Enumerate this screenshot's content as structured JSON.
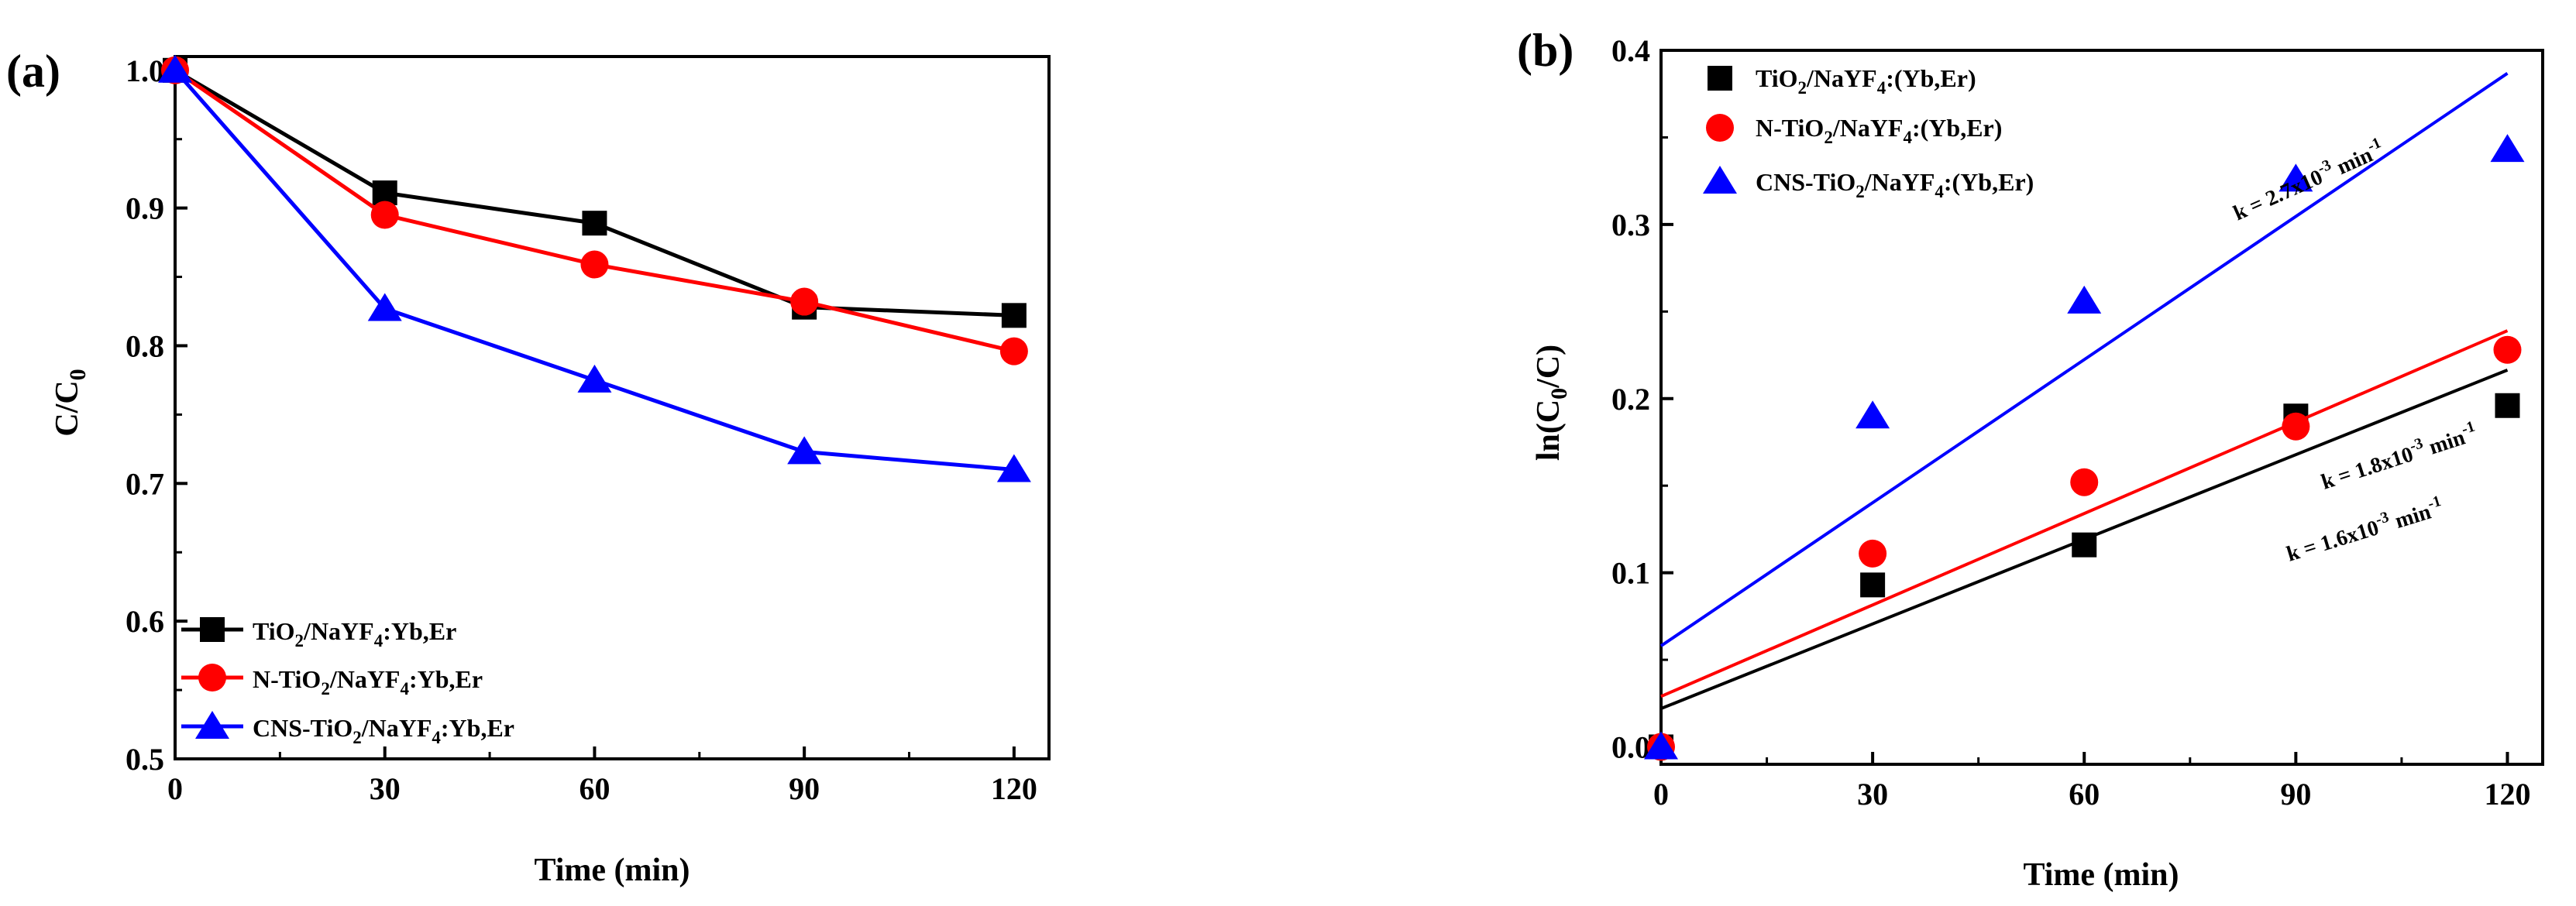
{
  "chart_data": [
    {
      "panel_label": "(a)",
      "type": "line",
      "x": [
        0,
        30,
        60,
        90,
        120
      ],
      "xlabel": "Time (min)",
      "ylabel": {
        "main": "C/C",
        "sub": "0"
      },
      "xlim": [
        0,
        125
      ],
      "ylim": [
        0.5,
        1.01
      ],
      "xticks": [
        0,
        30,
        60,
        90,
        120
      ],
      "yticks": [
        0.5,
        0.6,
        0.7,
        0.8,
        0.9,
        1.0
      ],
      "ytick_labels": [
        "0.5",
        "0.6",
        "0.7",
        "0.8",
        "0.9",
        "1.0"
      ],
      "legend_position": "bottom-left",
      "series": [
        {
          "name": "TiO2/NaYF4:Yb,Er",
          "label": {
            "a": "TiO",
            "b": "2",
            "c": "/NaYF",
            "d": "4",
            "e": ":Yb,Er"
          },
          "marker": "square",
          "color": "#000000",
          "values": [
            1.0,
            0.911,
            0.889,
            0.828,
            0.822
          ]
        },
        {
          "name": "N-TiO2/NaYF4:Yb,Er",
          "label": {
            "a": "N-TiO",
            "b": "2",
            "c": "/NaYF",
            "d": "4",
            "e": ":Yb,Er"
          },
          "marker": "circle",
          "color": "#ff0000",
          "values": [
            1.0,
            0.895,
            0.859,
            0.832,
            0.796
          ]
        },
        {
          "name": "CNS-TiO2/NaYF4:Yb,Er",
          "label": {
            "a": "CNS-TiO",
            "b": "2",
            "c": "/NaYF",
            "d": "4",
            "e": ":Yb,Er"
          },
          "marker": "triangle",
          "color": "#0000ff",
          "values": [
            1.0,
            0.827,
            0.775,
            0.723,
            0.71
          ]
        }
      ]
    },
    {
      "panel_label": "(b)",
      "type": "scatter",
      "x": [
        0,
        30,
        60,
        90,
        120
      ],
      "xlabel": "Time (min)",
      "ylabel": {
        "a": "ln(C",
        "b": "0",
        "c": "/C)"
      },
      "xlim": [
        0,
        125
      ],
      "ylim": [
        -0.01,
        0.4
      ],
      "xticks": [
        0,
        30,
        60,
        90,
        120
      ],
      "yticks": [
        0.0,
        0.1,
        0.2,
        0.3,
        0.4
      ],
      "ytick_labels": [
        "0.0",
        "0.1",
        "0.2",
        "0.3",
        "0.4"
      ],
      "legend_position": "top-left",
      "series": [
        {
          "name": "TiO2/NaYF4:(Yb,Er)",
          "label": {
            "a": "TiO",
            "b": "2",
            "c": "/NaYF",
            "d": "4",
            "e": ":(Yb,Er)"
          },
          "marker": "square",
          "color": "#000000",
          "values": [
            0.0,
            0.093,
            0.116,
            0.19,
            0.196
          ],
          "fit": {
            "intercept": 0.022,
            "slope": 0.00162
          },
          "annotation": {
            "a": "k = 1.6x10",
            "b": "-3",
            "c": "  min",
            "d": "-1"
          }
        },
        {
          "name": "N-TiO2/NaYF4:(Yb,Er)",
          "label": {
            "a": "N-TiO",
            "b": "2",
            "c": "/NaYF",
            "d": "4",
            "e": ":(Yb,Er)"
          },
          "marker": "circle",
          "color": "#ff0000",
          "values": [
            0.0,
            0.111,
            0.152,
            0.184,
            0.228
          ],
          "fit": {
            "intercept": 0.029,
            "slope": 0.00175
          },
          "annotation": {
            "a": "k = 1.8x10",
            "b": "-3",
            "c": "  min",
            "d": "-1"
          }
        },
        {
          "name": "CNS-TiO2/NaYF4:(Yb,Er)",
          "label": {
            "a": "CNS-TiO",
            "b": "2",
            "c": "/NaYF",
            "d": "4",
            "e": ":(Yb,Er)"
          },
          "marker": "triangle",
          "color": "#0000ff",
          "values": [
            0.0,
            0.19,
            0.256,
            0.326,
            0.343
          ],
          "fit": {
            "intercept": 0.058,
            "slope": 0.00274
          },
          "annotation": {
            "a": "k = 2.7x10",
            "b": "-3",
            "c": "  min",
            "d": "-1"
          }
        }
      ]
    }
  ]
}
